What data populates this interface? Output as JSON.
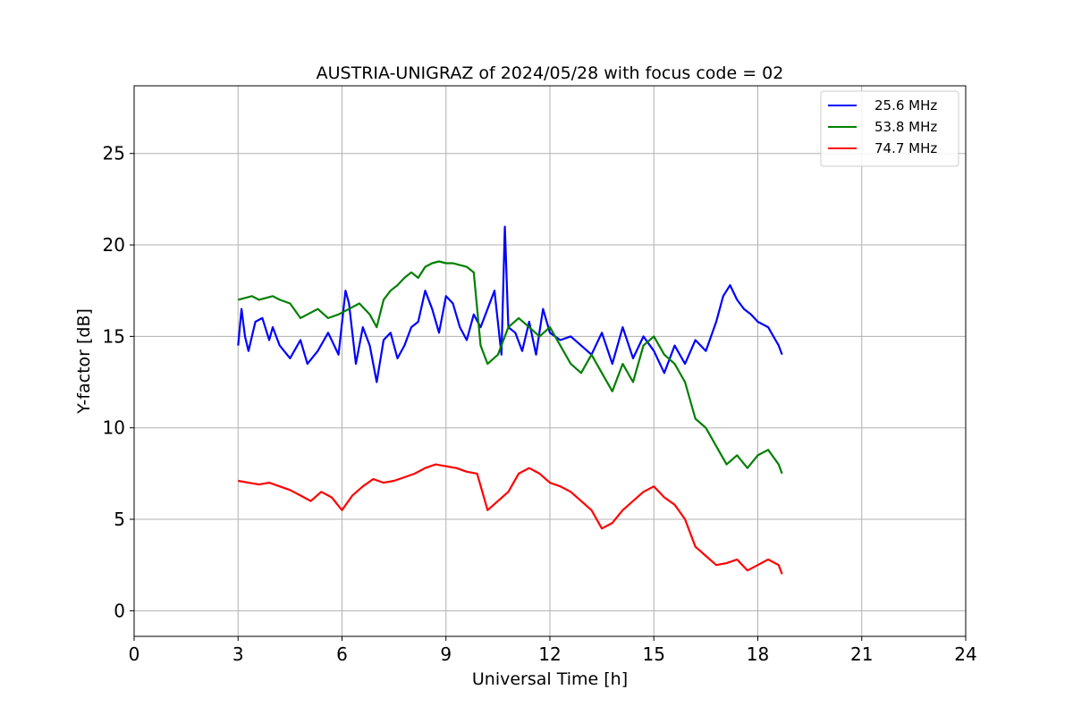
{
  "chart_data": {
    "type": "line",
    "title": "AUSTRIA-UNIGRAZ of 2024/05/28 with focus code = 02",
    "xlabel": "Universal Time [h]",
    "ylabel": "Y-factor [dB]",
    "xlim": [
      0,
      24
    ],
    "ylim": [
      -1.4,
      28.7
    ],
    "xticks": [
      0,
      3,
      6,
      9,
      12,
      15,
      18,
      21,
      24
    ],
    "yticks": [
      0,
      5,
      10,
      15,
      20,
      25
    ],
    "grid": true,
    "legend_position": "top-right",
    "series": [
      {
        "name": "25.6 MHz",
        "color": "#0000ff",
        "x": [
          3.0,
          3.1,
          3.2,
          3.3,
          3.5,
          3.7,
          3.9,
          4.0,
          4.2,
          4.5,
          4.8,
          5.0,
          5.3,
          5.6,
          5.9,
          6.1,
          6.2,
          6.4,
          6.6,
          6.8,
          7.0,
          7.2,
          7.4,
          7.6,
          7.8,
          8.0,
          8.2,
          8.4,
          8.6,
          8.8,
          9.0,
          9.2,
          9.4,
          9.6,
          9.8,
          10.0,
          10.2,
          10.4,
          10.6,
          10.7,
          10.8,
          11.0,
          11.2,
          11.4,
          11.6,
          11.8,
          12.0,
          12.3,
          12.6,
          12.9,
          13.2,
          13.5,
          13.8,
          14.1,
          14.4,
          14.7,
          15.0,
          15.3,
          15.6,
          15.9,
          16.2,
          16.5,
          16.8,
          17.0,
          17.2,
          17.4,
          17.6,
          17.8,
          18.0,
          18.3,
          18.6,
          18.7
        ],
        "y": [
          14.5,
          16.5,
          15.0,
          14.2,
          15.8,
          16.0,
          14.8,
          15.5,
          14.5,
          13.8,
          14.8,
          13.5,
          14.2,
          15.2,
          14.0,
          17.5,
          16.8,
          13.5,
          15.5,
          14.5,
          12.5,
          14.8,
          15.2,
          13.8,
          14.5,
          15.5,
          15.8,
          17.5,
          16.5,
          15.2,
          17.2,
          16.8,
          15.5,
          14.8,
          16.2,
          15.5,
          16.5,
          17.5,
          14.0,
          21.0,
          15.5,
          15.2,
          14.2,
          15.8,
          14.0,
          16.5,
          15.2,
          14.8,
          15.0,
          14.5,
          14.0,
          15.2,
          13.5,
          15.5,
          13.8,
          15.0,
          14.2,
          13.0,
          14.5,
          13.5,
          14.8,
          14.2,
          15.8,
          17.2,
          17.8,
          17.0,
          16.5,
          16.2,
          15.8,
          15.5,
          14.5,
          14.0
        ]
      },
      {
        "name": "53.8 MHz",
        "color": "#008000",
        "x": [
          3.0,
          3.2,
          3.4,
          3.6,
          3.8,
          4.0,
          4.2,
          4.5,
          4.8,
          5.0,
          5.3,
          5.6,
          5.9,
          6.2,
          6.5,
          6.8,
          7.0,
          7.2,
          7.4,
          7.6,
          7.8,
          8.0,
          8.2,
          8.4,
          8.6,
          8.8,
          9.0,
          9.2,
          9.4,
          9.6,
          9.8,
          10.0,
          10.2,
          10.5,
          10.8,
          11.1,
          11.4,
          11.7,
          12.0,
          12.3,
          12.6,
          12.9,
          13.2,
          13.5,
          13.8,
          14.1,
          14.4,
          14.7,
          15.0,
          15.3,
          15.6,
          15.9,
          16.2,
          16.5,
          16.8,
          17.1,
          17.4,
          17.7,
          18.0,
          18.3,
          18.6,
          18.7
        ],
        "y": [
          17.0,
          17.1,
          17.2,
          17.0,
          17.1,
          17.2,
          17.0,
          16.8,
          16.0,
          16.2,
          16.5,
          16.0,
          16.2,
          16.5,
          16.8,
          16.2,
          15.5,
          17.0,
          17.5,
          17.8,
          18.2,
          18.5,
          18.2,
          18.8,
          19.0,
          19.1,
          19.0,
          19.0,
          18.9,
          18.8,
          18.5,
          14.5,
          13.5,
          14.0,
          15.5,
          16.0,
          15.5,
          15.0,
          15.5,
          14.5,
          13.5,
          13.0,
          14.0,
          13.0,
          12.0,
          13.5,
          12.5,
          14.5,
          15.0,
          14.0,
          13.5,
          12.5,
          10.5,
          10.0,
          9.0,
          8.0,
          8.5,
          7.8,
          8.5,
          8.8,
          8.0,
          7.5
        ]
      },
      {
        "name": "74.7 MHz",
        "color": "#ff0000",
        "x": [
          3.0,
          3.3,
          3.6,
          3.9,
          4.2,
          4.5,
          4.8,
          5.1,
          5.4,
          5.7,
          6.0,
          6.3,
          6.6,
          6.9,
          7.2,
          7.5,
          7.8,
          8.1,
          8.4,
          8.7,
          9.0,
          9.3,
          9.6,
          9.9,
          10.2,
          10.5,
          10.8,
          11.1,
          11.4,
          11.7,
          12.0,
          12.3,
          12.6,
          12.9,
          13.2,
          13.5,
          13.8,
          14.1,
          14.4,
          14.7,
          15.0,
          15.3,
          15.6,
          15.9,
          16.2,
          16.5,
          16.8,
          17.1,
          17.4,
          17.7,
          18.0,
          18.3,
          18.6,
          18.7
        ],
        "y": [
          7.1,
          7.0,
          6.9,
          7.0,
          6.8,
          6.6,
          6.3,
          6.0,
          6.5,
          6.2,
          5.5,
          6.3,
          6.8,
          7.2,
          7.0,
          7.1,
          7.3,
          7.5,
          7.8,
          8.0,
          7.9,
          7.8,
          7.6,
          7.5,
          5.5,
          6.0,
          6.5,
          7.5,
          7.8,
          7.5,
          7.0,
          6.8,
          6.5,
          6.0,
          5.5,
          4.5,
          4.8,
          5.5,
          6.0,
          6.5,
          6.8,
          6.2,
          5.8,
          5.0,
          3.5,
          3.0,
          2.5,
          2.6,
          2.8,
          2.2,
          2.5,
          2.8,
          2.5,
          2.0
        ]
      }
    ]
  }
}
